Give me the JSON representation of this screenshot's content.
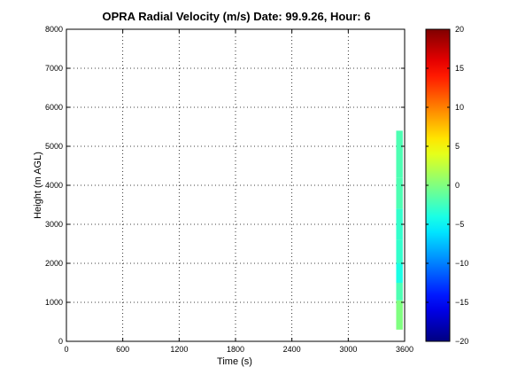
{
  "chart_data": {
    "type": "heatmap",
    "title": "OPRA Radial Velocity (m/s)  Date: 99.9.26, Hour: 6",
    "xlabel": "Time (s)",
    "ylabel": "Height (m AGL)",
    "xlim": [
      0,
      3600
    ],
    "ylim": [
      0,
      8000
    ],
    "xticks": [
      0,
      600,
      1200,
      1800,
      2400,
      3000,
      3600
    ],
    "xtick_labels": [
      "0",
      "600",
      "1200",
      "1800",
      "2400",
      "3000",
      "3600"
    ],
    "yticks": [
      0,
      1000,
      2000,
      3000,
      4000,
      5000,
      6000,
      7000,
      8000
    ],
    "ytick_labels": [
      "0",
      "1000",
      "2000",
      "3000",
      "4000",
      "5000",
      "6000",
      "7000",
      "8000"
    ],
    "grid": true,
    "colorbar": {
      "colormap": "jet",
      "range": [
        -20,
        20
      ],
      "ticks": [
        -20,
        -15,
        -10,
        -5,
        0,
        5,
        10,
        15,
        20
      ],
      "tick_labels": [
        "−20",
        "−15",
        "−10",
        "−5",
        "0",
        "5",
        "10",
        "15",
        "20"
      ]
    },
    "cells": [
      {
        "t0": 3510,
        "t1": 3580,
        "h0": 300,
        "h1": 1050,
        "velocity": 0
      },
      {
        "t0": 3510,
        "t1": 3580,
        "h0": 1050,
        "h1": 1500,
        "velocity": -2
      },
      {
        "t0": 3510,
        "t1": 3580,
        "h0": 1500,
        "h1": 2000,
        "velocity": -4
      },
      {
        "t0": 3510,
        "t1": 3580,
        "h0": 2000,
        "h1": 2600,
        "velocity": -3
      },
      {
        "t0": 3510,
        "t1": 3580,
        "h0": 2600,
        "h1": 3400,
        "velocity": -3
      },
      {
        "t0": 3510,
        "t1": 3580,
        "h0": 3400,
        "h1": 4200,
        "velocity": -2
      },
      {
        "t0": 3510,
        "t1": 3580,
        "h0": 4200,
        "h1": 5400,
        "velocity": -2
      }
    ]
  }
}
